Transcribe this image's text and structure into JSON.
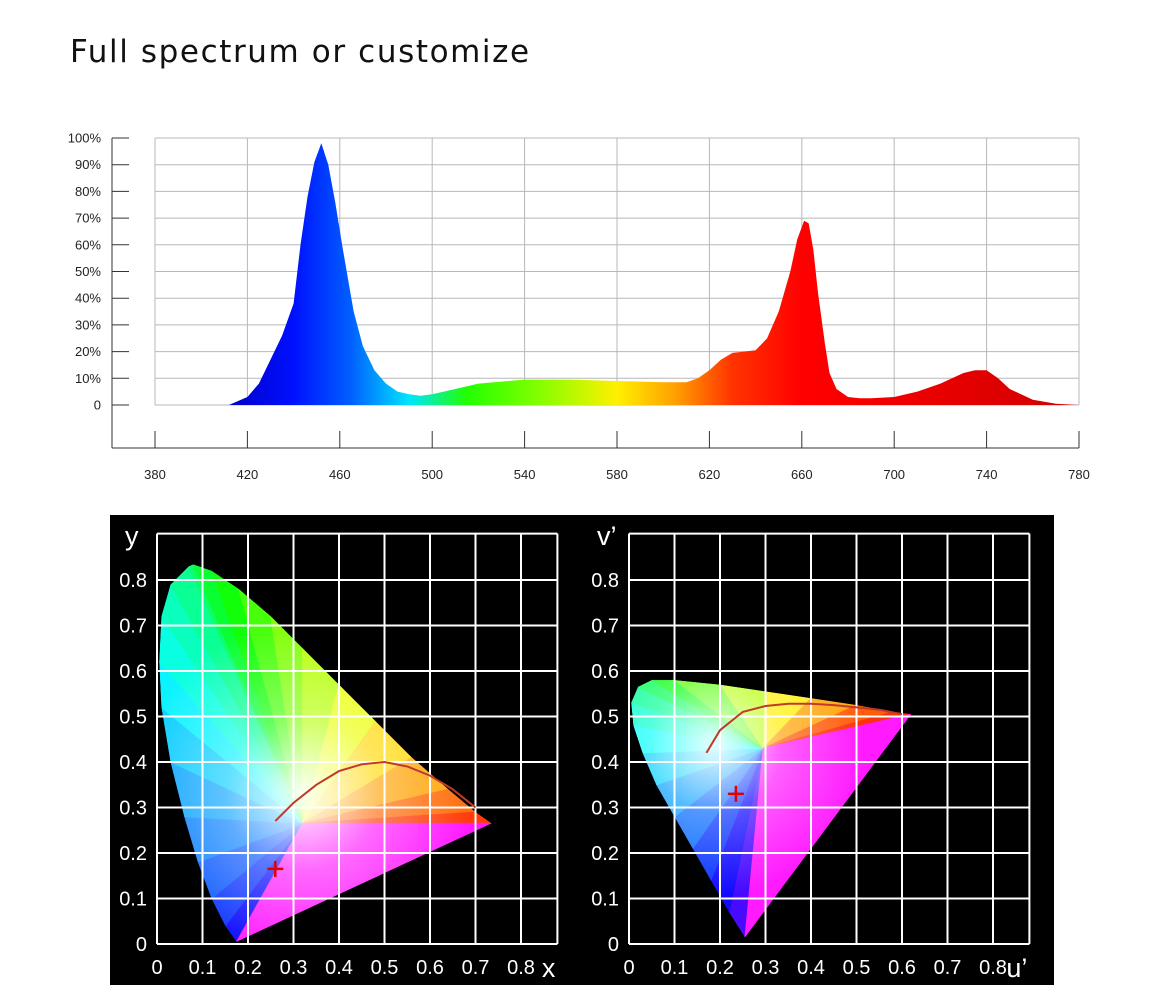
{
  "title": "Full spectrum or customize",
  "chart_data": [
    {
      "type": "area",
      "name": "spectrum",
      "x_ticks": [
        "380",
        "420",
        "460",
        "500",
        "540",
        "580",
        "620",
        "660",
        "700",
        "740",
        "780"
      ],
      "y_ticks": [
        "0",
        "10%",
        "20%",
        "30%",
        "40%",
        "50%",
        "60%",
        "70%",
        "80%",
        "90%",
        "100%"
      ],
      "xlim": [
        380,
        780
      ],
      "ylim": [
        0,
        100
      ],
      "grid": true,
      "x": [
        380,
        412,
        420,
        425,
        430,
        435,
        440,
        443,
        446,
        449,
        452,
        455,
        458,
        461,
        463,
        466,
        470,
        475,
        480,
        485,
        490,
        495,
        500,
        510,
        520,
        540,
        560,
        580,
        600,
        610,
        615,
        620,
        625,
        630,
        635,
        640,
        645,
        650,
        655,
        658,
        661,
        663,
        665,
        667,
        670,
        672,
        675,
        680,
        685,
        690,
        700,
        710,
        720,
        730,
        735,
        740,
        745,
        750,
        760,
        770,
        780
      ],
      "values": [
        0,
        0,
        3,
        8,
        17,
        26,
        38,
        60,
        78,
        91,
        98,
        90,
        76,
        60,
        50,
        35,
        22,
        13,
        8,
        5,
        4,
        3.5,
        4,
        6,
        8,
        9.5,
        9.5,
        9,
        8.5,
        8.5,
        10,
        13,
        17,
        19.5,
        20,
        20.5,
        25,
        35,
        50,
        62,
        69,
        68,
        58,
        42,
        23,
        12,
        6,
        3,
        2.5,
        2.5,
        3,
        5,
        8,
        12,
        13,
        13,
        10,
        6,
        2,
        0.5,
        0
      ],
      "colors": [
        {
          "nm": 412,
          "color": "#0000c8"
        },
        {
          "nm": 440,
          "color": "#0010ff"
        },
        {
          "nm": 465,
          "color": "#0060ff"
        },
        {
          "nm": 490,
          "color": "#00e5ff"
        },
        {
          "nm": 515,
          "color": "#22ff00"
        },
        {
          "nm": 545,
          "color": "#80ff00"
        },
        {
          "nm": 580,
          "color": "#fff000"
        },
        {
          "nm": 605,
          "color": "#ffa000"
        },
        {
          "nm": 630,
          "color": "#ff3300"
        },
        {
          "nm": 660,
          "color": "#ff0000"
        },
        {
          "nm": 780,
          "color": "#d00000"
        }
      ]
    },
    {
      "type": "scatter",
      "name": "cie-xy",
      "x_axis_label": "x",
      "y_axis_label": "y",
      "x_ticks": [
        "0",
        "0.1",
        "0.2",
        "0.3",
        "0.4",
        "0.5",
        "0.6",
        "0.7",
        "0.8"
      ],
      "y_ticks": [
        "0",
        "0.1",
        "0.2",
        "0.3",
        "0.4",
        "0.5",
        "0.6",
        "0.7",
        "0.8"
      ],
      "xlim": [
        0,
        0.88
      ],
      "ylim": [
        0,
        0.88
      ],
      "grid": true,
      "background": "#000000",
      "locus": [
        [
          0.175,
          0.005
        ],
        [
          0.15,
          0.04
        ],
        [
          0.12,
          0.1
        ],
        [
          0.09,
          0.18
        ],
        [
          0.06,
          0.28
        ],
        [
          0.03,
          0.4
        ],
        [
          0.01,
          0.52
        ],
        [
          0.005,
          0.62
        ],
        [
          0.01,
          0.72
        ],
        [
          0.03,
          0.79
        ],
        [
          0.07,
          0.83
        ],
        [
          0.08,
          0.834
        ],
        [
          0.12,
          0.82
        ],
        [
          0.18,
          0.78
        ],
        [
          0.25,
          0.72
        ],
        [
          0.32,
          0.65
        ],
        [
          0.4,
          0.57
        ],
        [
          0.48,
          0.49
        ],
        [
          0.56,
          0.41
        ],
        [
          0.64,
          0.34
        ],
        [
          0.7,
          0.29
        ],
        [
          0.735,
          0.265
        ]
      ],
      "planckian": [
        [
          0.26,
          0.27
        ],
        [
          0.3,
          0.31
        ],
        [
          0.35,
          0.35
        ],
        [
          0.4,
          0.38
        ],
        [
          0.45,
          0.395
        ],
        [
          0.5,
          0.4
        ],
        [
          0.55,
          0.39
        ],
        [
          0.6,
          0.37
        ],
        [
          0.65,
          0.34
        ],
        [
          0.7,
          0.3
        ]
      ],
      "marker": {
        "x": 0.26,
        "y": 0.165
      }
    },
    {
      "type": "scatter",
      "name": "cie-uv",
      "x_axis_label": "u’",
      "y_axis_label": "v’",
      "x_ticks": [
        "0",
        "0.1",
        "0.2",
        "0.3",
        "0.4",
        "0.5",
        "0.6",
        "0.7",
        "0.8"
      ],
      "y_ticks": [
        "0",
        "0.1",
        "0.2",
        "0.3",
        "0.4",
        "0.5",
        "0.6",
        "0.7",
        "0.8"
      ],
      "xlim": [
        0,
        0.88
      ],
      "ylim": [
        0,
        0.88
      ],
      "grid": true,
      "background": "#000000",
      "locus": [
        [
          0.255,
          0.015
        ],
        [
          0.22,
          0.07
        ],
        [
          0.18,
          0.14
        ],
        [
          0.14,
          0.21
        ],
        [
          0.1,
          0.28
        ],
        [
          0.06,
          0.35
        ],
        [
          0.03,
          0.42
        ],
        [
          0.01,
          0.48
        ],
        [
          0.005,
          0.53
        ],
        [
          0.02,
          0.565
        ],
        [
          0.05,
          0.58
        ],
        [
          0.1,
          0.58
        ],
        [
          0.2,
          0.57
        ],
        [
          0.3,
          0.555
        ],
        [
          0.4,
          0.54
        ],
        [
          0.5,
          0.525
        ],
        [
          0.58,
          0.51
        ],
        [
          0.62,
          0.505
        ]
      ],
      "planckian": [
        [
          0.17,
          0.42
        ],
        [
          0.2,
          0.47
        ],
        [
          0.25,
          0.51
        ],
        [
          0.3,
          0.523
        ],
        [
          0.35,
          0.528
        ],
        [
          0.4,
          0.528
        ],
        [
          0.45,
          0.525
        ],
        [
          0.5,
          0.52
        ],
        [
          0.55,
          0.515
        ],
        [
          0.6,
          0.505
        ]
      ],
      "marker": {
        "x": 0.235,
        "y": 0.33
      }
    }
  ]
}
